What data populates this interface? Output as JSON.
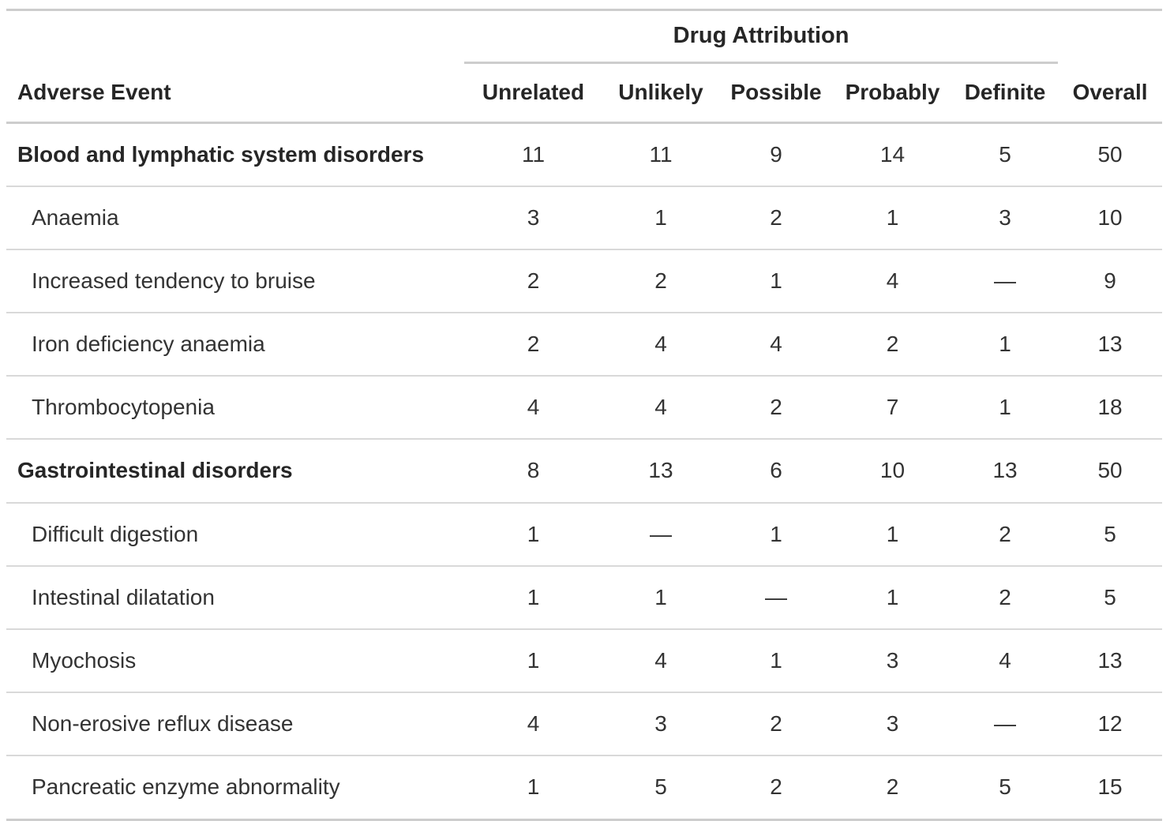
{
  "chart_data": {
    "type": "table",
    "spanner_label": "Drug Attribution",
    "stub_header": "Adverse Event",
    "columns": [
      "Unrelated",
      "Unlikely",
      "Possible",
      "Probably",
      "Definite",
      "Overall"
    ],
    "missing_value_glyph": "—",
    "rows": [
      {
        "label": "Blood and lymphatic system disorders",
        "group": true,
        "values": [
          11,
          11,
          9,
          14,
          5,
          50
        ]
      },
      {
        "label": "Anaemia",
        "group": false,
        "values": [
          3,
          1,
          2,
          1,
          3,
          10
        ]
      },
      {
        "label": "Increased tendency to bruise",
        "group": false,
        "values": [
          2,
          2,
          1,
          4,
          null,
          9
        ]
      },
      {
        "label": "Iron deficiency anaemia",
        "group": false,
        "values": [
          2,
          4,
          4,
          2,
          1,
          13
        ]
      },
      {
        "label": "Thrombocytopenia",
        "group": false,
        "values": [
          4,
          4,
          2,
          7,
          1,
          18
        ]
      },
      {
        "label": "Gastrointestinal disorders",
        "group": true,
        "values": [
          8,
          13,
          6,
          10,
          13,
          50
        ]
      },
      {
        "label": "Difficult digestion",
        "group": false,
        "values": [
          1,
          null,
          1,
          1,
          2,
          5
        ]
      },
      {
        "label": "Intestinal dilatation",
        "group": false,
        "values": [
          1,
          1,
          null,
          1,
          2,
          5
        ]
      },
      {
        "label": "Myochosis",
        "group": false,
        "values": [
          1,
          4,
          1,
          3,
          4,
          13
        ]
      },
      {
        "label": "Non-erosive reflux disease",
        "group": false,
        "values": [
          4,
          3,
          2,
          3,
          null,
          12
        ]
      },
      {
        "label": "Pancreatic enzyme abnormality",
        "group": false,
        "values": [
          1,
          5,
          2,
          2,
          5,
          15
        ]
      }
    ]
  },
  "colors": {
    "text": "#333333",
    "heading_text": "#262626",
    "border_strong": "#cdcdcd",
    "border_light": "#d9d9d9",
    "background": "#ffffff"
  }
}
